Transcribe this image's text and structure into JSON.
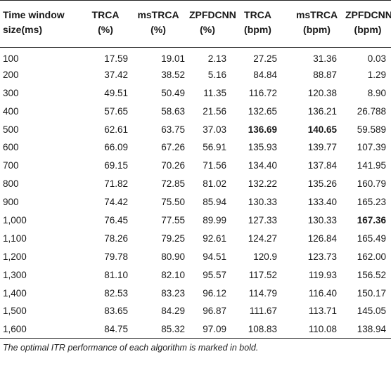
{
  "table": {
    "headers": [
      [
        "Time window",
        "size(ms)"
      ],
      [
        "TRCA",
        "(%)"
      ],
      [
        "msTRCA",
        "(%)"
      ],
      [
        "ZPFDCNN",
        "(%)"
      ],
      [
        "TRCA",
        "(bpm)"
      ],
      [
        "msTRCA",
        "(bpm)"
      ],
      [
        "ZPFDCNN",
        "(bpm)"
      ]
    ],
    "rows": [
      [
        "100",
        "17.59",
        "19.01",
        "2.13",
        "27.25",
        "31.36",
        "0.03"
      ],
      [
        "200",
        "37.42",
        "38.52",
        "5.16",
        "84.84",
        "88.87",
        "1.29"
      ],
      [
        "300",
        "49.51",
        "50.49",
        "11.35",
        "116.72",
        "120.38",
        "8.90"
      ],
      [
        "400",
        "57.65",
        "58.63",
        "21.56",
        "132.65",
        "136.21",
        "26.788"
      ],
      [
        "500",
        "62.61",
        "63.75",
        "37.03",
        "136.69",
        "140.65",
        "59.589"
      ],
      [
        "600",
        "66.09",
        "67.26",
        "56.91",
        "135.93",
        "139.77",
        "107.39"
      ],
      [
        "700",
        "69.15",
        "70.26",
        "71.56",
        "134.40",
        "137.84",
        "141.95"
      ],
      [
        "800",
        "71.82",
        "72.85",
        "81.02",
        "132.22",
        "135.26",
        "160.79"
      ],
      [
        "900",
        "74.42",
        "75.50",
        "85.94",
        "130.33",
        "133.40",
        "165.23"
      ],
      [
        "1,000",
        "76.45",
        "77.55",
        "89.99",
        "127.33",
        "130.33",
        "167.36"
      ],
      [
        "1,100",
        "78.26",
        "79.25",
        "92.61",
        "124.27",
        "126.84",
        "165.49"
      ],
      [
        "1,200",
        "79.78",
        "80.90",
        "94.51",
        "120.9",
        "123.73",
        "162.00"
      ],
      [
        "1,300",
        "81.10",
        "82.10",
        "95.57",
        "117.52",
        "119.93",
        "156.52"
      ],
      [
        "1,400",
        "82.53",
        "83.23",
        "96.12",
        "114.79",
        "116.40",
        "150.17"
      ],
      [
        "1,500",
        "83.65",
        "84.29",
        "96.87",
        "111.67",
        "113.71",
        "145.05"
      ],
      [
        "1,600",
        "84.75",
        "85.32",
        "97.09",
        "108.83",
        "110.08",
        "138.94"
      ]
    ],
    "bold_cells": [
      [
        4,
        4
      ],
      [
        4,
        5
      ],
      [
        9,
        6
      ]
    ]
  },
  "footnote": "The optimal ITR performance of each algorithm is marked in bold."
}
